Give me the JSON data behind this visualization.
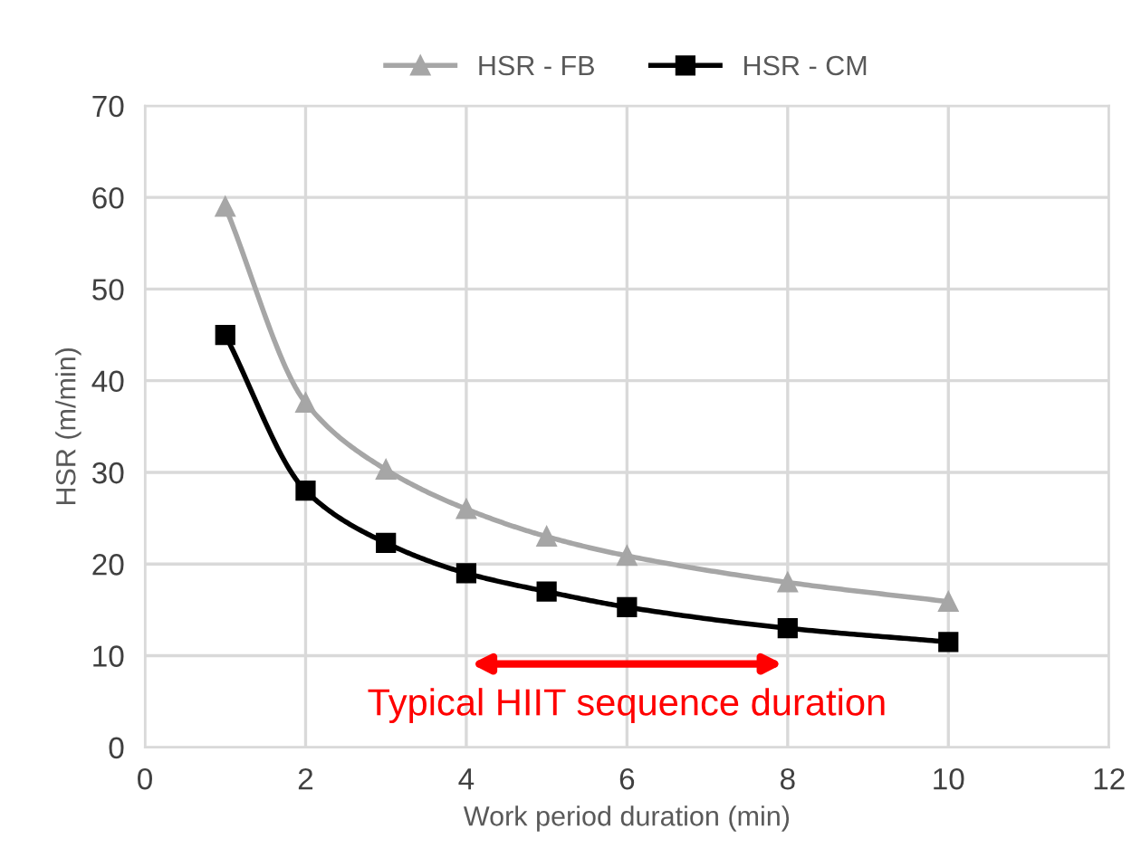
{
  "chart_data": {
    "type": "line",
    "xlabel": "Work period duration (min)",
    "ylabel": "HSR (m/min)",
    "x": [
      1,
      2,
      3,
      4,
      5,
      6,
      8,
      10
    ],
    "series": [
      {
        "name": "HSR - FB",
        "color": "#a6a6a6",
        "marker": "triangle",
        "values": [
          59,
          37.6,
          30.3,
          26,
          23,
          20.9,
          18,
          15.9
        ]
      },
      {
        "name": "HSR - CM",
        "color": "#000000",
        "marker": "square",
        "values": [
          45,
          28,
          22.3,
          19,
          17,
          15.3,
          13,
          11.5
        ]
      }
    ],
    "xlim": [
      0,
      12
    ],
    "xticks": [
      0,
      2,
      4,
      6,
      8,
      10,
      12
    ],
    "ylim": [
      0,
      70
    ],
    "yticks": [
      0,
      10,
      20,
      30,
      40,
      50,
      60,
      70
    ],
    "grid": true,
    "legend": "top",
    "line_style": "solid",
    "annotations": [
      "Typical HIIT sequence duration"
    ]
  }
}
